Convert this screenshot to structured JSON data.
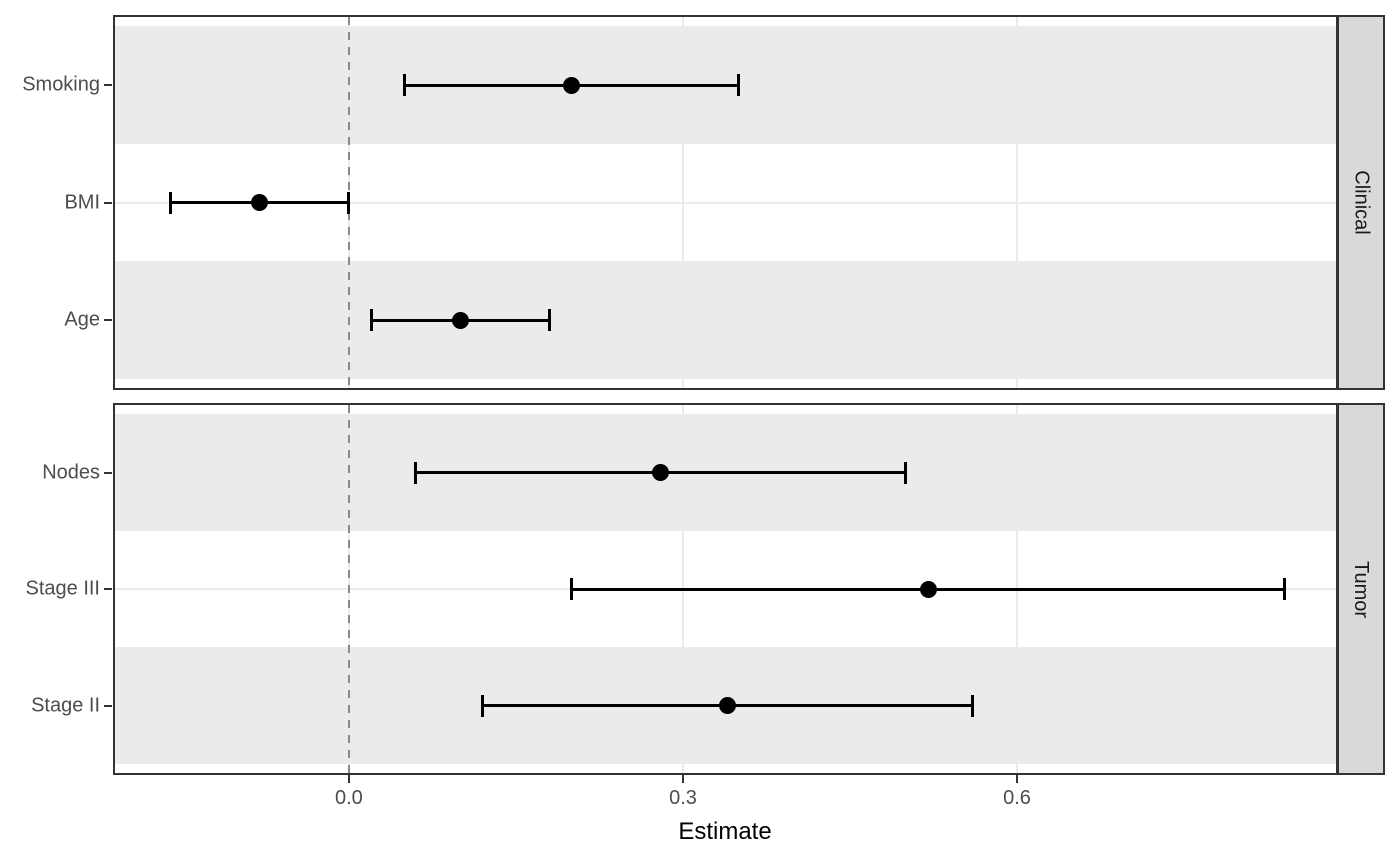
{
  "chart_data": {
    "type": "forest",
    "title": "",
    "xlabel": "Estimate",
    "xlim": [
      -0.21,
      0.89
    ],
    "x_ticks": [
      0.0,
      0.3,
      0.6
    ],
    "x_tick_labels": [
      "0.0",
      "0.3",
      "0.6"
    ],
    "zero_reference_line": 0.0,
    "grid": "on",
    "legend": "none",
    "facets": [
      {
        "label": "Clinical",
        "rows": [
          {
            "label": "Smoking",
            "estimate": 0.2,
            "ci_low": 0.05,
            "ci_high": 0.35
          },
          {
            "label": "BMI",
            "estimate": -0.08,
            "ci_low": -0.16,
            "ci_high": 0.0
          },
          {
            "label": "Age",
            "estimate": 0.1,
            "ci_low": 0.02,
            "ci_high": 0.18
          }
        ]
      },
      {
        "label": "Tumor",
        "rows": [
          {
            "label": "Nodes",
            "estimate": 0.28,
            "ci_low": 0.06,
            "ci_high": 0.5
          },
          {
            "label": "Stage III",
            "estimate": 0.52,
            "ci_low": 0.2,
            "ci_high": 0.84
          },
          {
            "label": "Stage II",
            "estimate": 0.34,
            "ci_low": 0.12,
            "ci_high": 0.56
          }
        ]
      }
    ],
    "colors": {
      "marker": "#000000",
      "band_stripe": "#ebebeb",
      "gridline": "#ebebeb",
      "strip_background": "#d9d9d9",
      "panel_border": "#333333",
      "dashed_zero_line": "#898989",
      "axis_text": "#4d4d4d",
      "strip_text": "#1a1a1a",
      "axis_title": "#000000"
    }
  }
}
